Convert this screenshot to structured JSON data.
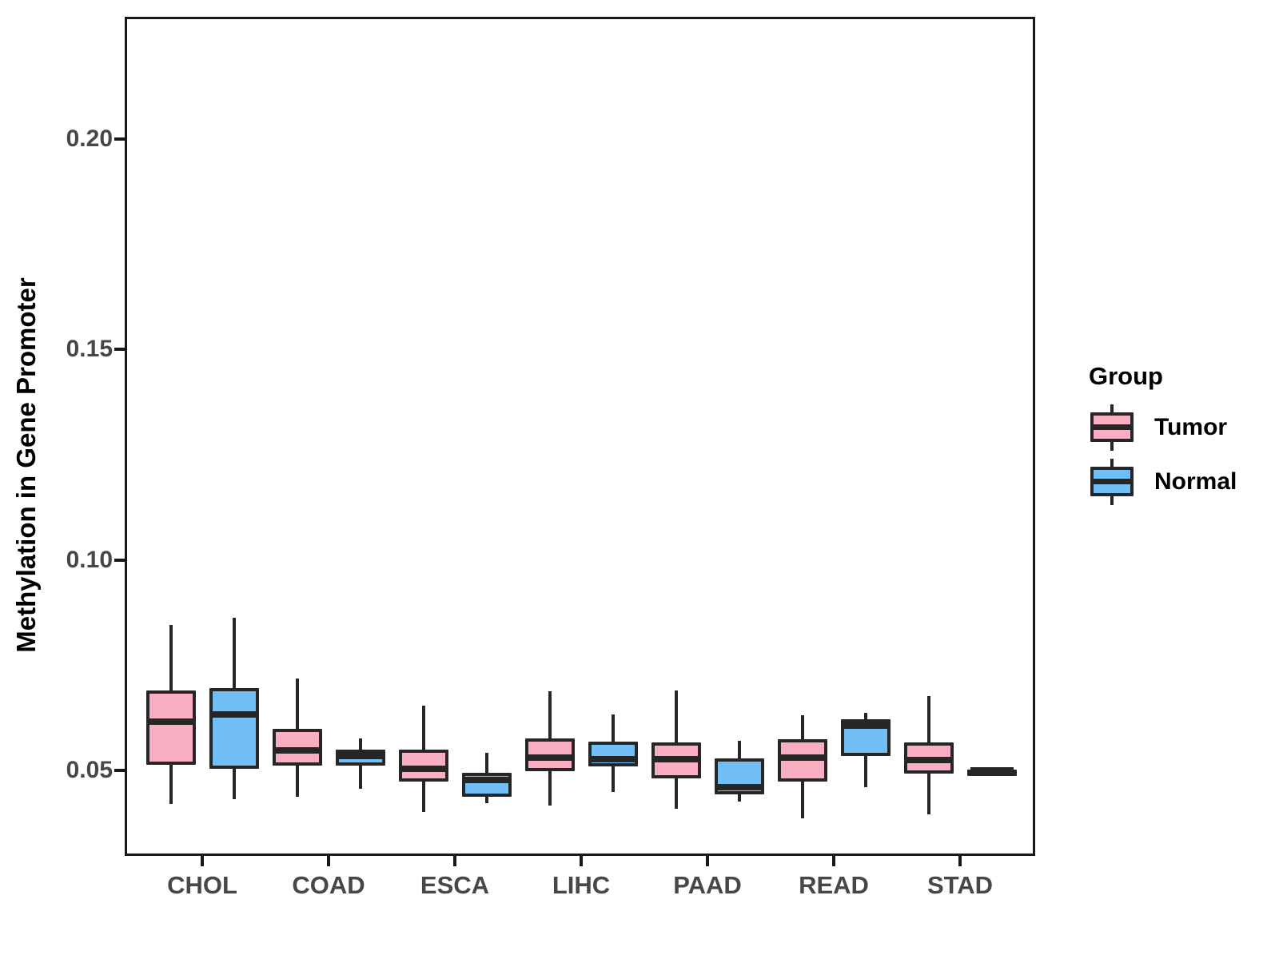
{
  "figure": {
    "ylabel": "Methylation in Gene Promoter",
    "legend": {
      "title": "Group",
      "items": [
        {
          "label": "Tumor",
          "color": "#FAAEC1"
        },
        {
          "label": "Normal",
          "color": "#71BEF5"
        }
      ]
    }
  },
  "colors": {
    "tumor_fill": "#FAAEC1",
    "normal_fill": "#71BEF5",
    "box_border": "#262626",
    "panel_border": "#191919",
    "axis_tick_text": "#474747",
    "axis_title_text": "#000000",
    "background": "#ffffff"
  },
  "chart_data": {
    "type": "boxplot",
    "title": "",
    "xlabel": "",
    "ylabel": "Methylation in Gene Promoter",
    "categories": [
      "CHOL",
      "COAD",
      "ESCA",
      "LIHC",
      "PAAD",
      "READ",
      "STAD"
    ],
    "series": [
      {
        "name": "Tumor",
        "color": "#FAAEC1",
        "boxes": [
          {
            "category": "CHOL",
            "whisker_low": 0.042,
            "q1": 0.0513,
            "median": 0.0616,
            "q3": 0.069,
            "whisker_high": 0.0845
          },
          {
            "category": "COAD",
            "whisker_low": 0.0437,
            "q1": 0.0511,
            "median": 0.0547,
            "q3": 0.0598,
            "whisker_high": 0.0718
          },
          {
            "category": "ESCA",
            "whisker_low": 0.04,
            "q1": 0.0473,
            "median": 0.0504,
            "q3": 0.0548,
            "whisker_high": 0.0653
          },
          {
            "category": "LIHC",
            "whisker_low": 0.0416,
            "q1": 0.0497,
            "median": 0.0529,
            "q3": 0.0576,
            "whisker_high": 0.0688
          },
          {
            "category": "PAAD",
            "whisker_low": 0.0409,
            "q1": 0.0481,
            "median": 0.0527,
            "q3": 0.0566,
            "whisker_high": 0.0689
          },
          {
            "category": "READ",
            "whisker_low": 0.0386,
            "q1": 0.0473,
            "median": 0.053,
            "q3": 0.0573,
            "whisker_high": 0.063
          },
          {
            "category": "STAD",
            "whisker_low": 0.0396,
            "q1": 0.0491,
            "median": 0.0525,
            "q3": 0.0566,
            "whisker_high": 0.0677
          }
        ]
      },
      {
        "name": "Normal",
        "color": "#71BEF5",
        "boxes": [
          {
            "category": "CHOL",
            "whisker_low": 0.0431,
            "q1": 0.0503,
            "median": 0.0633,
            "q3": 0.0695,
            "whisker_high": 0.0862
          },
          {
            "category": "COAD",
            "whisker_low": 0.0455,
            "q1": 0.0511,
            "median": 0.0534,
            "q3": 0.0549,
            "whisker_high": 0.0575
          },
          {
            "category": "ESCA",
            "whisker_low": 0.0421,
            "q1": 0.0437,
            "median": 0.0477,
            "q3": 0.0494,
            "whisker_high": 0.0541
          },
          {
            "category": "LIHC",
            "whisker_low": 0.0449,
            "q1": 0.0509,
            "median": 0.0527,
            "q3": 0.0568,
            "whisker_high": 0.0632
          },
          {
            "category": "PAAD",
            "whisker_low": 0.0426,
            "q1": 0.0443,
            "median": 0.0459,
            "q3": 0.0528,
            "whisker_high": 0.0569
          },
          {
            "category": "READ",
            "whisker_low": 0.046,
            "q1": 0.0533,
            "median": 0.0605,
            "q3": 0.0621,
            "whisker_high": 0.0637
          },
          {
            "category": "STAD",
            "whisker_low": 0.0495,
            "q1": 0.0498,
            "median": 0.05,
            "q3": 0.0502,
            "whisker_high": 0.0505
          }
        ]
      }
    ],
    "yticks": [
      0.05,
      0.1,
      0.15,
      0.2
    ],
    "ytick_labels": [
      "0.05",
      "0.10",
      "0.15",
      "0.20"
    ],
    "ylim": [
      0.0302,
      0.2285
    ],
    "grid": false,
    "legend_position": "right",
    "legend_title": "Group"
  }
}
